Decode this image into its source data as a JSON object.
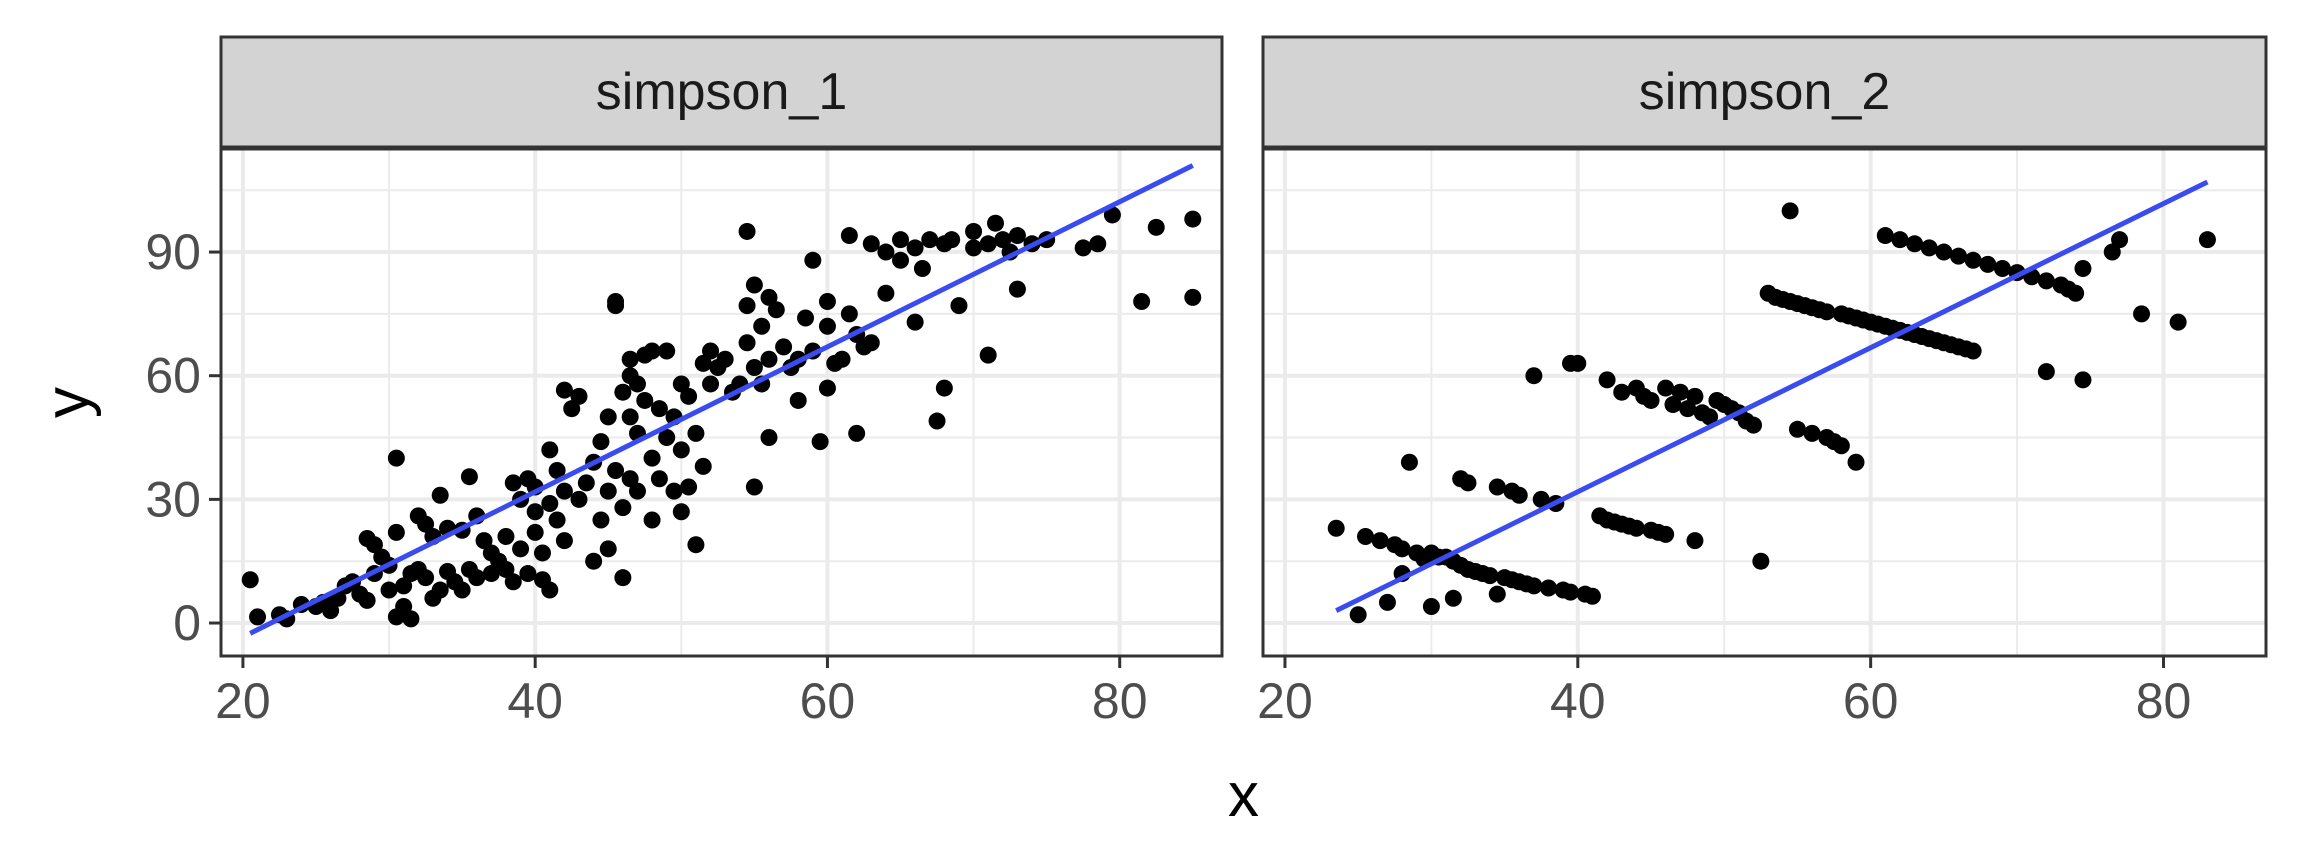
{
  "chart_data": {
    "type": "scatter",
    "xlabel": "x",
    "ylabel": "y",
    "xlim": [
      18.5,
      87
    ],
    "ylim": [
      -8,
      115
    ],
    "x_ticks": [
      20,
      40,
      60,
      80
    ],
    "y_ticks": [
      0,
      30,
      60,
      90
    ],
    "grid": true,
    "colors": {
      "points": "#000000",
      "fit_line": "#3a4cf0",
      "strip_bg": "#d3d3d3",
      "grid": "#ebebeb",
      "panel_border": "#333333"
    },
    "facets": [
      {
        "strip_label": "simpson_1",
        "fit": {
          "x": [
            20.5,
            85
          ],
          "y": [
            -2.5,
            111
          ]
        },
        "points": [
          [
            20.5,
            10.5
          ],
          [
            21,
            1.5
          ],
          [
            22.5,
            2
          ],
          [
            23,
            1
          ],
          [
            24,
            4.5
          ],
          [
            25,
            4
          ],
          [
            25.5,
            5
          ],
          [
            26,
            3
          ],
          [
            26.5,
            6
          ],
          [
            27,
            9
          ],
          [
            27.5,
            10
          ],
          [
            28,
            7
          ],
          [
            28.5,
            20.5
          ],
          [
            28.5,
            5.5
          ],
          [
            29,
            19
          ],
          [
            29,
            12
          ],
          [
            29.5,
            16
          ],
          [
            30,
            8
          ],
          [
            30,
            14
          ],
          [
            30.5,
            22
          ],
          [
            30.5,
            40
          ],
          [
            30.5,
            1.5
          ],
          [
            31,
            9
          ],
          [
            31,
            4
          ],
          [
            31.5,
            12
          ],
          [
            31.5,
            1
          ],
          [
            32,
            26
          ],
          [
            32,
            13
          ],
          [
            32.5,
            24
          ],
          [
            32.5,
            11
          ],
          [
            33,
            21
          ],
          [
            33,
            6
          ],
          [
            33.5,
            31
          ],
          [
            33.5,
            8
          ],
          [
            34,
            23
          ],
          [
            34,
            12.5
          ],
          [
            34.5,
            10
          ],
          [
            35,
            22.5
          ],
          [
            35,
            8
          ],
          [
            35.5,
            35.5
          ],
          [
            35.5,
            13
          ],
          [
            36,
            26
          ],
          [
            36,
            11
          ],
          [
            36.5,
            20
          ],
          [
            37,
            17
          ],
          [
            37,
            12
          ],
          [
            37.5,
            15
          ],
          [
            38,
            21
          ],
          [
            38,
            13
          ],
          [
            38.5,
            34
          ],
          [
            38.5,
            10
          ],
          [
            39,
            30
          ],
          [
            39,
            18
          ],
          [
            39.5,
            35
          ],
          [
            39.5,
            12
          ],
          [
            40,
            33
          ],
          [
            40,
            27
          ],
          [
            40,
            22
          ],
          [
            40.5,
            17
          ],
          [
            40.5,
            10.5
          ],
          [
            41,
            42
          ],
          [
            41,
            29
          ],
          [
            41,
            8
          ],
          [
            41.5,
            37
          ],
          [
            41.5,
            25
          ],
          [
            42,
            56.5
          ],
          [
            42,
            32
          ],
          [
            42,
            20
          ],
          [
            42.5,
            52
          ],
          [
            43,
            55
          ],
          [
            43,
            30
          ],
          [
            43.5,
            34
          ],
          [
            44,
            39
          ],
          [
            44,
            15
          ],
          [
            44.5,
            44
          ],
          [
            44.5,
            25
          ],
          [
            45,
            50
          ],
          [
            45,
            32
          ],
          [
            45,
            18
          ],
          [
            45.5,
            77
          ],
          [
            45.5,
            78
          ],
          [
            45.5,
            37
          ],
          [
            46,
            56
          ],
          [
            46,
            28
          ],
          [
            46,
            11
          ],
          [
            46.5,
            64
          ],
          [
            46.5,
            60
          ],
          [
            46.5,
            50
          ],
          [
            46.5,
            35
          ],
          [
            47,
            58
          ],
          [
            47,
            46
          ],
          [
            47,
            32
          ],
          [
            47.5,
            65
          ],
          [
            47.5,
            54
          ],
          [
            48,
            66
          ],
          [
            48,
            40
          ],
          [
            48,
            25
          ],
          [
            48.5,
            52
          ],
          [
            48.5,
            35
          ],
          [
            49,
            66
          ],
          [
            49,
            45
          ],
          [
            49.5,
            50
          ],
          [
            49.5,
            32
          ],
          [
            50,
            58
          ],
          [
            50,
            42
          ],
          [
            50,
            27
          ],
          [
            50.5,
            55
          ],
          [
            50.5,
            33
          ],
          [
            51,
            46
          ],
          [
            51,
            19
          ],
          [
            51.5,
            63
          ],
          [
            51.5,
            38
          ],
          [
            52,
            66
          ],
          [
            52,
            58
          ],
          [
            52.5,
            62
          ],
          [
            53,
            64
          ],
          [
            53.5,
            56
          ],
          [
            54,
            58
          ],
          [
            54.5,
            77
          ],
          [
            54.5,
            68
          ],
          [
            54.5,
            95
          ],
          [
            55,
            82
          ],
          [
            55,
            62
          ],
          [
            55,
            33
          ],
          [
            55.5,
            72
          ],
          [
            55.5,
            58
          ],
          [
            56,
            79
          ],
          [
            56,
            64
          ],
          [
            56,
            45
          ],
          [
            56.5,
            76
          ],
          [
            57,
            67
          ],
          [
            57.5,
            62
          ],
          [
            58,
            64
          ],
          [
            58,
            54
          ],
          [
            58.5,
            74
          ],
          [
            59,
            88
          ],
          [
            59,
            66
          ],
          [
            59.5,
            44
          ],
          [
            60,
            78
          ],
          [
            60,
            72
          ],
          [
            60,
            57
          ],
          [
            60.5,
            63
          ],
          [
            61,
            64
          ],
          [
            61.5,
            94
          ],
          [
            61.5,
            75
          ],
          [
            62,
            70
          ],
          [
            62,
            46
          ],
          [
            62.5,
            67
          ],
          [
            63,
            92
          ],
          [
            63,
            68
          ],
          [
            64,
            90
          ],
          [
            64,
            80
          ],
          [
            65,
            93
          ],
          [
            65,
            88
          ],
          [
            66,
            91
          ],
          [
            66,
            73
          ],
          [
            66.5,
            86
          ],
          [
            67,
            93
          ],
          [
            67.5,
            49
          ],
          [
            68,
            57
          ],
          [
            68,
            92
          ],
          [
            68.5,
            93
          ],
          [
            69,
            77
          ],
          [
            70,
            95
          ],
          [
            70,
            91
          ],
          [
            71,
            92
          ],
          [
            71,
            65
          ],
          [
            71.5,
            97
          ],
          [
            72,
            93
          ],
          [
            72.5,
            90
          ],
          [
            73,
            94
          ],
          [
            73,
            81
          ],
          [
            74,
            92
          ],
          [
            75,
            93
          ],
          [
            77.5,
            91
          ],
          [
            78.5,
            92
          ],
          [
            79.5,
            99
          ],
          [
            81.5,
            78
          ],
          [
            82.5,
            96
          ],
          [
            85,
            98
          ],
          [
            85,
            79
          ]
        ]
      },
      {
        "strip_label": "simpson_2",
        "fit": {
          "x": [
            23.5,
            83
          ],
          "y": [
            3,
            107
          ]
        },
        "points": [
          [
            23.5,
            23
          ],
          [
            25,
            2
          ],
          [
            25.5,
            21
          ],
          [
            26.5,
            20
          ],
          [
            27,
            5
          ],
          [
            27.5,
            19
          ],
          [
            28,
            18
          ],
          [
            28,
            12
          ],
          [
            28.5,
            39
          ],
          [
            29,
            17
          ],
          [
            29.5,
            15.5
          ],
          [
            30,
            17
          ],
          [
            30,
            4
          ],
          [
            30.5,
            16
          ],
          [
            31,
            16
          ],
          [
            31.5,
            15
          ],
          [
            31.5,
            6
          ],
          [
            32,
            35
          ],
          [
            32,
            14
          ],
          [
            32.5,
            34
          ],
          [
            32.5,
            13
          ],
          [
            33,
            12.5
          ],
          [
            33.5,
            12
          ],
          [
            34,
            11.5
          ],
          [
            34.5,
            33
          ],
          [
            34.5,
            7
          ],
          [
            35,
            11
          ],
          [
            35.5,
            32
          ],
          [
            35.5,
            10.5
          ],
          [
            36,
            10
          ],
          [
            36,
            31
          ],
          [
            36.5,
            9.5
          ],
          [
            37,
            9
          ],
          [
            37.5,
            30
          ],
          [
            37,
            60
          ],
          [
            38,
            8.5
          ],
          [
            38.5,
            29
          ],
          [
            39,
            8
          ],
          [
            39.5,
            63
          ],
          [
            40,
            63
          ],
          [
            39.5,
            7.5
          ],
          [
            40.5,
            7
          ],
          [
            41,
            6.5
          ],
          [
            41.5,
            26
          ],
          [
            42,
            25
          ],
          [
            42,
            59
          ],
          [
            42.5,
            24.5
          ],
          [
            43,
            24
          ],
          [
            43.5,
            23.5
          ],
          [
            43,
            56
          ],
          [
            44,
            23
          ],
          [
            44,
            57
          ],
          [
            44.5,
            55
          ],
          [
            45,
            22.5
          ],
          [
            45,
            54
          ],
          [
            45.5,
            22
          ],
          [
            46,
            21.5
          ],
          [
            46,
            57
          ],
          [
            46.5,
            53
          ],
          [
            47,
            56
          ],
          [
            47.5,
            52
          ],
          [
            48,
            55
          ],
          [
            48,
            20
          ],
          [
            48.5,
            51
          ],
          [
            49,
            50
          ],
          [
            49.5,
            54
          ],
          [
            50,
            53
          ],
          [
            50.5,
            52
          ],
          [
            51,
            51
          ],
          [
            51.5,
            49
          ],
          [
            52,
            48
          ],
          [
            52.5,
            15
          ],
          [
            53,
            80
          ],
          [
            53.5,
            79
          ],
          [
            54,
            78.5
          ],
          [
            54.5,
            100
          ],
          [
            54.5,
            78
          ],
          [
            55,
            77.5
          ],
          [
            55,
            47
          ],
          [
            55.5,
            77
          ],
          [
            56,
            76.5
          ],
          [
            56,
            46
          ],
          [
            56.5,
            76
          ],
          [
            57,
            75.5
          ],
          [
            57,
            45
          ],
          [
            57.5,
            44
          ],
          [
            58,
            75
          ],
          [
            58,
            43
          ],
          [
            58.5,
            74.5
          ],
          [
            59,
            39
          ],
          [
            59,
            74
          ],
          [
            59.5,
            73.5
          ],
          [
            60,
            73
          ],
          [
            60.5,
            72.5
          ],
          [
            61,
            72
          ],
          [
            61,
            94
          ],
          [
            61.5,
            71.5
          ],
          [
            62,
            71
          ],
          [
            62,
            93
          ],
          [
            62.5,
            70.5
          ],
          [
            63,
            70
          ],
          [
            63,
            92
          ],
          [
            63.5,
            69.5
          ],
          [
            64,
            69
          ],
          [
            64,
            91
          ],
          [
            64.5,
            68.5
          ],
          [
            65,
            68
          ],
          [
            65,
            90
          ],
          [
            65.5,
            67.5
          ],
          [
            66,
            67
          ],
          [
            66,
            89
          ],
          [
            66.5,
            66.5
          ],
          [
            67,
            66
          ],
          [
            67,
            88
          ],
          [
            68,
            87
          ],
          [
            69,
            86
          ],
          [
            70,
            85
          ],
          [
            71,
            84
          ],
          [
            72,
            83
          ],
          [
            72,
            61
          ],
          [
            73,
            82
          ],
          [
            73.5,
            81
          ],
          [
            74,
            80
          ],
          [
            74.5,
            59
          ],
          [
            74.5,
            86
          ],
          [
            76.5,
            90
          ],
          [
            77,
            93
          ],
          [
            78.5,
            75
          ],
          [
            81,
            73
          ],
          [
            83,
            93
          ]
        ]
      }
    ]
  }
}
